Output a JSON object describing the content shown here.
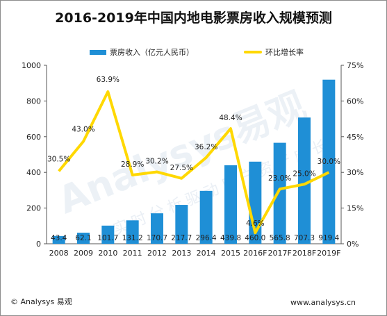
{
  "title": "2016-2019年中国内地电影票房收入规模预测",
  "legend": {
    "bar_label": "票房收入（亿元人民币）",
    "line_label": "环比增长率"
  },
  "watermark": {
    "main": "Analysys易观",
    "sub": "实时分析驱动用户资产成长"
  },
  "footer": {
    "left": "© Analysys 易观",
    "right": "www.analysys.cn"
  },
  "colors": {
    "bar": "#1f8fd6",
    "line": "#ffd800"
  },
  "chart_data": {
    "type": "bar",
    "categories": [
      "2008",
      "2009",
      "2010",
      "2011",
      "2012",
      "2013",
      "2014",
      "2015",
      "2016F",
      "2017F",
      "2018F",
      "2019F"
    ],
    "series": [
      {
        "name": "票房收入（亿元人民币）",
        "type": "bar",
        "axis": "left",
        "values": [
          43.4,
          62.1,
          101.7,
          131.2,
          170.7,
          217.7,
          296.4,
          439.8,
          460.0,
          565.8,
          707.3,
          919.4
        ],
        "labels": [
          "43.4",
          "62.1",
          "101.7",
          "131.2",
          "170.7",
          "217.7",
          "296.4",
          "439.8",
          "460.0",
          "565.8",
          "707.3",
          "919.4"
        ]
      },
      {
        "name": "环比增长率",
        "type": "line",
        "axis": "right",
        "values": [
          30.5,
          43.0,
          63.9,
          28.9,
          30.2,
          27.5,
          36.2,
          48.4,
          4.6,
          23.0,
          25.0,
          30.0
        ],
        "labels": [
          "30.5%",
          "43.0%",
          "63.9%",
          "28.9%",
          "30.2%",
          "27.5%",
          "36.2%",
          "48.4%",
          "4.6%",
          "23.0%",
          "25.0%",
          "30.0%"
        ]
      }
    ],
    "ylim_left": [
      0,
      1000
    ],
    "yticks_left": [
      "0",
      "200",
      "400",
      "600",
      "800",
      "1000"
    ],
    "ylim_right": [
      0,
      75
    ],
    "yticks_right": [
      "0%",
      "15%",
      "30%",
      "45%",
      "60%",
      "75%"
    ],
    "grid": false,
    "legend_position": "top"
  }
}
